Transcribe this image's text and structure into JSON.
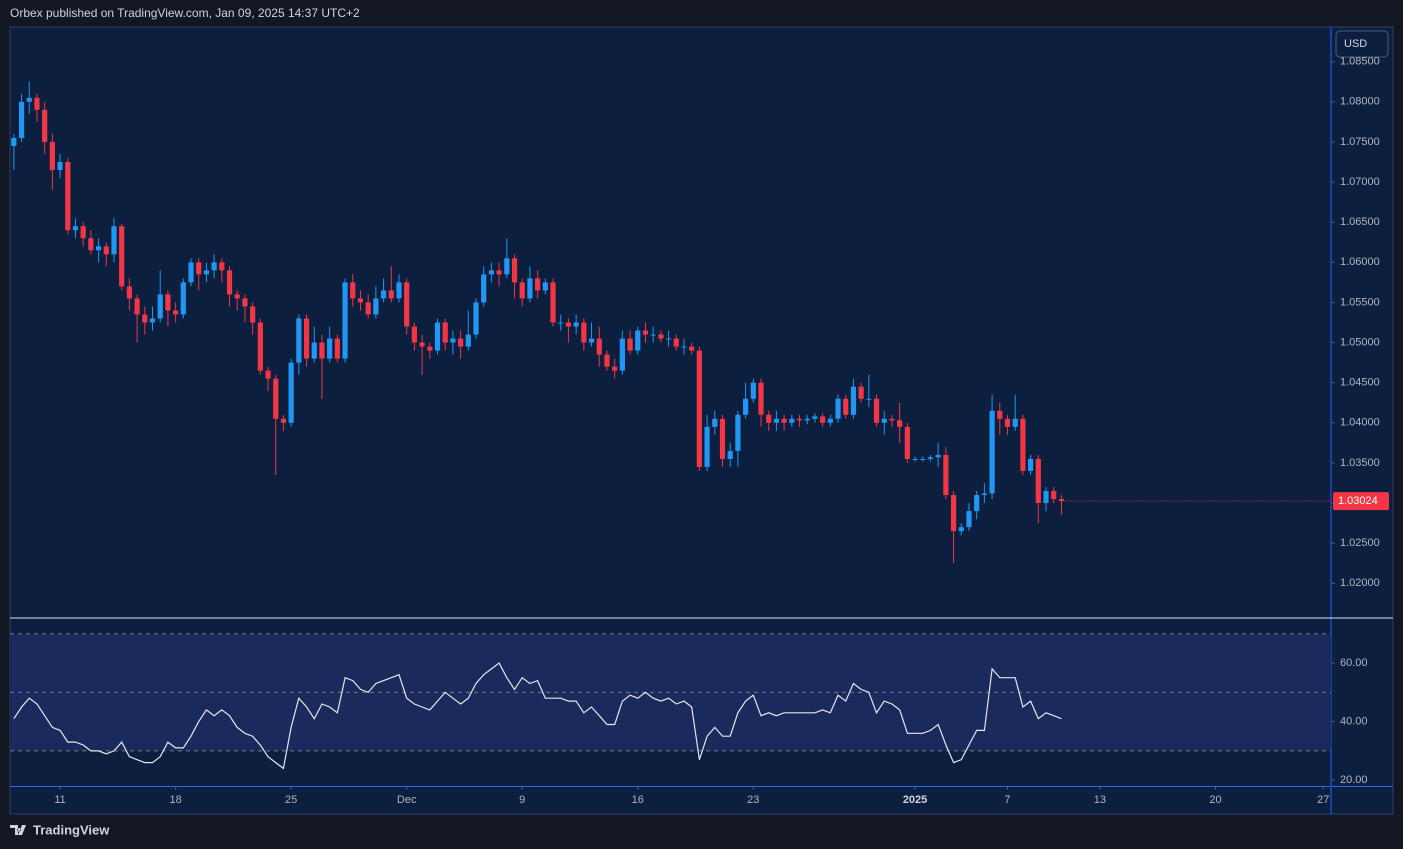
{
  "header": {
    "text": "Orbex published on TradingView.com, Jan 09, 2025 14:37 UTC+2"
  },
  "currency": "USD",
  "footer": {
    "brand": "TradingView"
  },
  "chart_data": [
    {
      "type": "candlestick",
      "up_color": "#2196f3",
      "down_color": "#f23645",
      "xlim": [
        -0.5,
        171
      ],
      "ylim": [
        1.0158,
        1.0892
      ],
      "yticks": [
        {
          "value": 1.02,
          "label": "1.02000"
        },
        {
          "value": 1.025,
          "label": "1.02500"
        },
        {
          "value": 1.03,
          "label": "1.03000"
        },
        {
          "value": 1.035,
          "label": "1.03500"
        },
        {
          "value": 1.04,
          "label": "1.04000"
        },
        {
          "value": 1.045,
          "label": "1.04500"
        },
        {
          "value": 1.05,
          "label": "1.05000"
        },
        {
          "value": 1.055,
          "label": "1.05500"
        },
        {
          "value": 1.06,
          "label": "1.06000"
        },
        {
          "value": 1.065,
          "label": "1.06500"
        },
        {
          "value": 1.07,
          "label": "1.07000"
        },
        {
          "value": 1.075,
          "label": "1.07500"
        },
        {
          "value": 1.08,
          "label": "1.08000"
        },
        {
          "value": 1.085,
          "label": "1.08500"
        }
      ],
      "open": [
        1.0745,
        1.0755,
        1.08,
        1.0805,
        1.079,
        1.075,
        1.0715,
        1.0725,
        1.064,
        1.0645,
        1.063,
        1.0615,
        1.062,
        1.061,
        1.0645,
        1.057,
        1.0555,
        1.0535,
        1.0525,
        1.053,
        1.056,
        1.054,
        1.0535,
        1.0575,
        1.06,
        1.0585,
        1.059,
        1.06,
        1.059,
        1.056,
        1.0555,
        1.0545,
        1.0525,
        1.0465,
        1.0455,
        1.0405,
        1.04,
        1.0475,
        1.053,
        1.048,
        1.05,
        1.048,
        1.0505,
        1.048,
        1.0575,
        1.0555,
        1.055,
        1.0535,
        1.0555,
        1.0565,
        1.0555,
        1.0575,
        1.052,
        1.05,
        1.0495,
        1.049,
        1.0525,
        1.05,
        1.0505,
        1.0495,
        1.051,
        1.055,
        1.0585,
        1.059,
        1.0585,
        1.0605,
        1.0575,
        1.0555,
        1.058,
        1.0565,
        1.0575,
        1.0525,
        1.0525,
        1.052,
        1.0525,
        1.05,
        1.0505,
        1.0485,
        1.047,
        1.0465,
        1.0505,
        1.049,
        1.0515,
        1.051,
        1.051,
        1.0505,
        1.0505,
        1.0495,
        1.0495,
        1.049,
        1.0345,
        1.0395,
        1.0405,
        1.0355,
        1.0365,
        1.041,
        1.043,
        1.045,
        1.041,
        1.04,
        1.0405,
        1.04,
        1.0405,
        1.0403,
        1.0405,
        1.0408,
        1.04,
        1.0405,
        1.043,
        1.041,
        1.0445,
        1.043,
        1.043,
        1.04,
        1.0405,
        1.0403,
        1.0395,
        1.0355,
        1.0355,
        1.0355,
        1.0357,
        1.036,
        1.031,
        1.0265,
        1.027,
        1.029,
        1.031,
        1.0312,
        1.0415,
        1.0405,
        1.0395,
        1.0405,
        1.034,
        1.0355,
        1.03,
        1.0315,
        1.0305
      ],
      "high": [
        1.076,
        1.081,
        1.0825,
        1.081,
        1.08,
        1.076,
        1.0735,
        1.073,
        1.0655,
        1.065,
        1.064,
        1.063,
        1.0625,
        1.0655,
        1.0648,
        1.058,
        1.056,
        1.0545,
        1.0545,
        1.059,
        1.0565,
        1.055,
        1.058,
        1.0605,
        1.0605,
        1.06,
        1.061,
        1.0605,
        1.0595,
        1.0565,
        1.056,
        1.055,
        1.053,
        1.047,
        1.046,
        1.041,
        1.048,
        1.0535,
        1.0535,
        1.052,
        1.051,
        1.052,
        1.051,
        1.058,
        1.0585,
        1.0565,
        1.056,
        1.057,
        1.058,
        1.0595,
        1.0585,
        1.058,
        1.0525,
        1.051,
        1.05,
        1.053,
        1.053,
        1.0515,
        1.0515,
        1.054,
        1.0555,
        1.0595,
        1.06,
        1.06,
        1.063,
        1.061,
        1.058,
        1.0595,
        1.059,
        1.058,
        1.058,
        1.0535,
        1.053,
        1.0535,
        1.053,
        1.0525,
        1.052,
        1.049,
        1.048,
        1.0515,
        1.0515,
        1.052,
        1.0525,
        1.052,
        1.0515,
        1.0515,
        1.051,
        1.0505,
        1.05,
        1.0495,
        1.041,
        1.0415,
        1.041,
        1.0375,
        1.0415,
        1.045,
        1.0455,
        1.0455,
        1.0415,
        1.0415,
        1.041,
        1.041,
        1.041,
        1.041,
        1.0412,
        1.0412,
        1.041,
        1.0435,
        1.0435,
        1.0455,
        1.045,
        1.046,
        1.0435,
        1.0415,
        1.041,
        1.0425,
        1.04,
        1.0358,
        1.0358,
        1.036,
        1.0375,
        1.037,
        1.0315,
        1.0275,
        1.03,
        1.0315,
        1.0325,
        1.0435,
        1.0425,
        1.041,
        1.0435,
        1.041,
        1.036,
        1.036,
        1.032,
        1.032,
        1.031
      ],
      "low": [
        1.0715,
        1.075,
        1.0785,
        1.0775,
        1.0735,
        1.069,
        1.0705,
        1.0635,
        1.063,
        1.062,
        1.061,
        1.06,
        1.0595,
        1.06,
        1.0565,
        1.054,
        1.05,
        1.051,
        1.0515,
        1.0525,
        1.052,
        1.0525,
        1.053,
        1.057,
        1.0565,
        1.0575,
        1.058,
        1.0575,
        1.0545,
        1.054,
        1.0525,
        1.051,
        1.046,
        1.044,
        1.0335,
        1.039,
        1.0395,
        1.046,
        1.047,
        1.0475,
        1.043,
        1.0475,
        1.0475,
        1.0475,
        1.0545,
        1.054,
        1.053,
        1.053,
        1.055,
        1.055,
        1.055,
        1.051,
        1.049,
        1.046,
        1.048,
        1.0485,
        1.049,
        1.0485,
        1.048,
        1.049,
        1.0505,
        1.0545,
        1.0575,
        1.057,
        1.058,
        1.0555,
        1.0545,
        1.055,
        1.0555,
        1.056,
        1.052,
        1.0515,
        1.05,
        1.051,
        1.049,
        1.0495,
        1.047,
        1.0465,
        1.0455,
        1.046,
        1.0485,
        1.0485,
        1.05,
        1.05,
        1.05,
        1.0495,
        1.049,
        1.0485,
        1.0485,
        1.034,
        1.034,
        1.0385,
        1.0345,
        1.0345,
        1.0345,
        1.0405,
        1.0425,
        1.0395,
        1.039,
        1.039,
        1.039,
        1.0395,
        1.0395,
        1.0398,
        1.04,
        1.0395,
        1.0395,
        1.04,
        1.0405,
        1.0405,
        1.0425,
        1.042,
        1.0395,
        1.0385,
        1.0395,
        1.0375,
        1.035,
        1.0352,
        1.0352,
        1.0352,
        1.0345,
        1.0305,
        1.0225,
        1.026,
        1.0265,
        1.028,
        1.03,
        1.0305,
        1.0385,
        1.0385,
        1.039,
        1.0335,
        1.0335,
        1.0275,
        1.029,
        1.03,
        1.0285
      ],
      "close": [
        1.0755,
        1.08,
        1.0805,
        1.079,
        1.075,
        1.0715,
        1.0725,
        1.064,
        1.0645,
        1.063,
        1.0615,
        1.062,
        1.061,
        1.0645,
        1.057,
        1.0555,
        1.0535,
        1.0525,
        1.053,
        1.056,
        1.054,
        1.0535,
        1.0575,
        1.06,
        1.0585,
        1.059,
        1.06,
        1.059,
        1.056,
        1.0555,
        1.0545,
        1.0525,
        1.0465,
        1.0455,
        1.0405,
        1.04,
        1.0475,
        1.053,
        1.048,
        1.05,
        1.048,
        1.0505,
        1.048,
        1.0575,
        1.0555,
        1.055,
        1.0535,
        1.0555,
        1.0565,
        1.0555,
        1.0575,
        1.052,
        1.05,
        1.0495,
        1.049,
        1.0525,
        1.05,
        1.0505,
        1.0495,
        1.051,
        1.055,
        1.0585,
        1.059,
        1.0585,
        1.0605,
        1.0575,
        1.0555,
        1.058,
        1.0565,
        1.0575,
        1.0525,
        1.0525,
        1.052,
        1.0525,
        1.05,
        1.0505,
        1.0485,
        1.047,
        1.0465,
        1.0505,
        1.049,
        1.0515,
        1.051,
        1.051,
        1.0505,
        1.0505,
        1.0495,
        1.0495,
        1.049,
        1.0345,
        1.0395,
        1.0405,
        1.0355,
        1.0365,
        1.041,
        1.043,
        1.045,
        1.041,
        1.04,
        1.0405,
        1.04,
        1.0405,
        1.0403,
        1.0405,
        1.0408,
        1.04,
        1.0405,
        1.043,
        1.041,
        1.0445,
        1.043,
        1.043,
        1.04,
        1.0405,
        1.0403,
        1.0395,
        1.0355,
        1.0355,
        1.0355,
        1.0357,
        1.036,
        1.031,
        1.0265,
        1.027,
        1.029,
        1.031,
        1.0312,
        1.0415,
        1.0405,
        1.0395,
        1.0405,
        1.034,
        1.0355,
        1.03,
        1.0315,
        1.0305,
        1.03024
      ]
    },
    {
      "type": "line",
      "color": "#e6e6e6",
      "band_color": "#1a2a5c",
      "xlim": [
        -0.5,
        171
      ],
      "ylim": [
        18,
        74.7
      ],
      "levels": [
        70,
        50,
        30
      ],
      "yticks": [
        {
          "value": 20,
          "label": "20.00"
        },
        {
          "value": 40,
          "label": "40.00"
        },
        {
          "value": 60,
          "label": "60.00"
        }
      ],
      "xticks": [
        {
          "value": 6,
          "label": "11"
        },
        {
          "value": 21,
          "label": "18"
        },
        {
          "value": 36,
          "label": "25"
        },
        {
          "value": 51,
          "label": "Dec"
        },
        {
          "value": 66,
          "label": "9"
        },
        {
          "value": 81,
          "label": "16"
        },
        {
          "value": 96,
          "label": "23"
        },
        {
          "value": 117,
          "label": "2025"
        },
        {
          "value": 129,
          "label": "7"
        },
        {
          "value": 141,
          "label": "13"
        },
        {
          "value": 156,
          "label": "20"
        },
        {
          "value": 170,
          "label": "27"
        }
      ],
      "values": [
        41,
        45,
        48,
        46,
        42,
        38,
        37,
        33,
        33,
        32,
        30,
        30,
        29,
        30,
        33,
        28,
        27,
        26,
        26,
        28,
        33,
        31,
        31,
        35,
        40,
        44,
        42,
        44,
        42,
        38,
        36,
        35,
        32,
        28,
        26,
        24,
        38,
        48,
        45,
        41,
        46,
        45,
        43,
        55,
        54,
        51,
        50,
        53,
        54,
        55,
        56,
        48,
        46,
        45,
        44,
        47,
        50,
        48,
        46,
        48,
        53,
        56,
        58,
        60,
        55,
        51,
        55,
        53,
        54,
        48,
        48,
        48,
        47,
        47,
        43,
        45,
        42,
        39,
        39,
        47,
        49,
        48,
        50,
        48,
        47,
        48,
        46,
        47,
        45,
        27,
        35,
        38,
        35,
        35,
        43,
        47,
        49,
        42,
        43,
        42,
        43,
        43,
        43,
        43,
        43,
        44,
        43,
        49,
        47,
        53,
        51,
        50,
        43,
        47,
        46,
        44,
        36,
        36,
        36,
        37,
        39,
        32,
        26,
        27,
        32,
        37,
        37,
        58,
        55,
        55,
        55,
        45,
        47,
        41,
        43,
        42,
        41
      ]
    }
  ]
}
